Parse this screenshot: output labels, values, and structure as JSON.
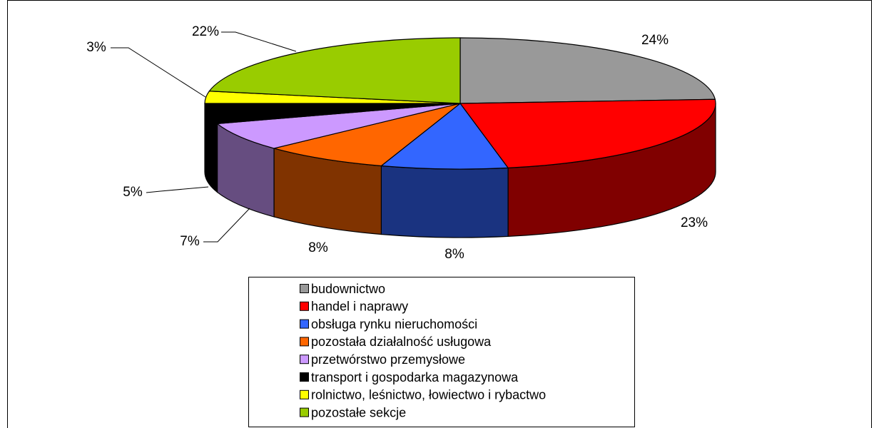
{
  "chart_data": {
    "type": "pie",
    "categories": [
      "budownictwo",
      "handel i naprawy",
      "obsługa rynku nieruchomości",
      "pozostała działalność usługowa",
      "przetwórstwo przemysłowe",
      "transport i gospodarka magazynowa",
      "rolnictwo, leśnictwo, łowiectwo i rybactwo",
      "pozostałe sekcje"
    ],
    "values": [
      24,
      23,
      8,
      8,
      7,
      5,
      3,
      22
    ],
    "value_labels": [
      "24%",
      "23%",
      "8%",
      "8%",
      "7%",
      "5%",
      "3%",
      "22%"
    ],
    "colors": [
      "#999999",
      "#ff0000",
      "#3366ff",
      "#ff6600",
      "#cc99ff",
      "#000000",
      "#ffff00",
      "#99cc00"
    ],
    "legend": "bottom"
  }
}
